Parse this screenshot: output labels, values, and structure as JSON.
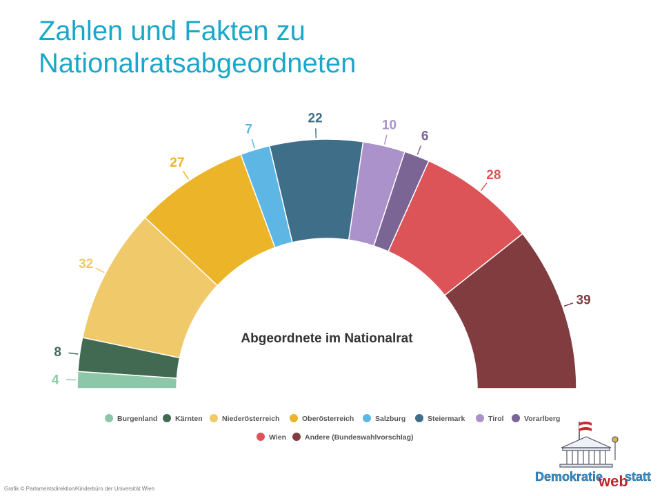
{
  "slide": {
    "title_line1": "Zahlen und Fakten zu",
    "title_line2": "Nationalratsabgeordneten",
    "credit": "Grafik © Parlamentsdirektion/Kinderbüro der Universität Wien",
    "logo_text_1": "Demokratie",
    "logo_text_2": "web",
    "logo_text_3": "statt"
  },
  "chart_data": {
    "type": "pie",
    "subtype": "semicircle-parliament",
    "title": "Abgeordnete im Nationalrat",
    "categories": [
      "Burgenland",
      "Kärnten",
      "Niederösterreich",
      "Oberösterreich",
      "Salzburg",
      "Steiermark",
      "Tirol",
      "Vorarlberg",
      "Wien",
      "Andere (Bundeswahlvorschlag)"
    ],
    "values": [
      4,
      8,
      32,
      27,
      7,
      22,
      10,
      6,
      28,
      39
    ],
    "colors": [
      "#8cc7a8",
      "#426a52",
      "#f0c96a",
      "#ecb428",
      "#5eb6e4",
      "#3f6e89",
      "#ab92cb",
      "#7a6594",
      "#dc5457",
      "#803c3f"
    ],
    "legend_position": "bottom",
    "data_labels": true
  }
}
